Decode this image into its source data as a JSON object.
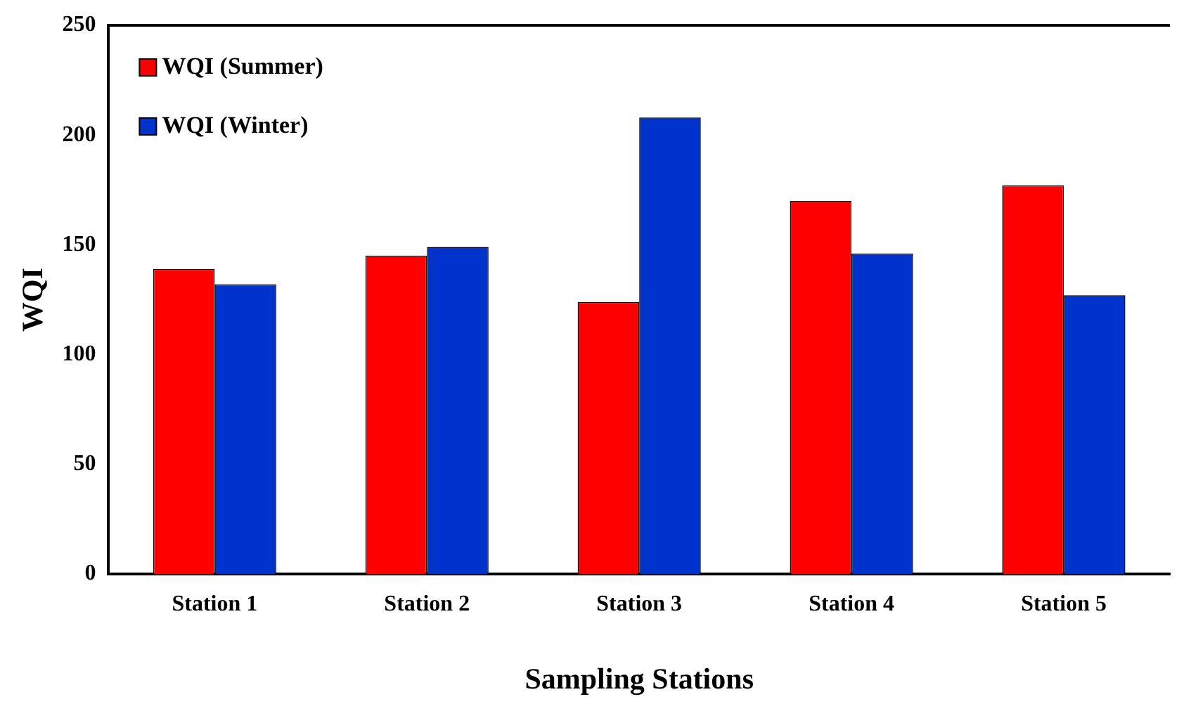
{
  "chart_data": {
    "type": "bar",
    "xlabel": "Sampling Stations",
    "ylabel": "WQI",
    "categories": [
      "Station 1",
      "Station 2",
      "Station 3",
      "Station 4",
      "Station 5"
    ],
    "series": [
      {
        "name": "WQI (Summer)",
        "color": "#ff0000",
        "values": [
          139,
          145,
          124,
          170,
          177
        ]
      },
      {
        "name": "WQI (Winter)",
        "color": "#0033cc",
        "values": [
          132,
          149,
          208,
          146,
          127
        ]
      }
    ],
    "ylim": [
      0,
      250
    ],
    "yticks": [
      0,
      50,
      100,
      150,
      200,
      250
    ],
    "grid": false,
    "legend": "top left"
  }
}
